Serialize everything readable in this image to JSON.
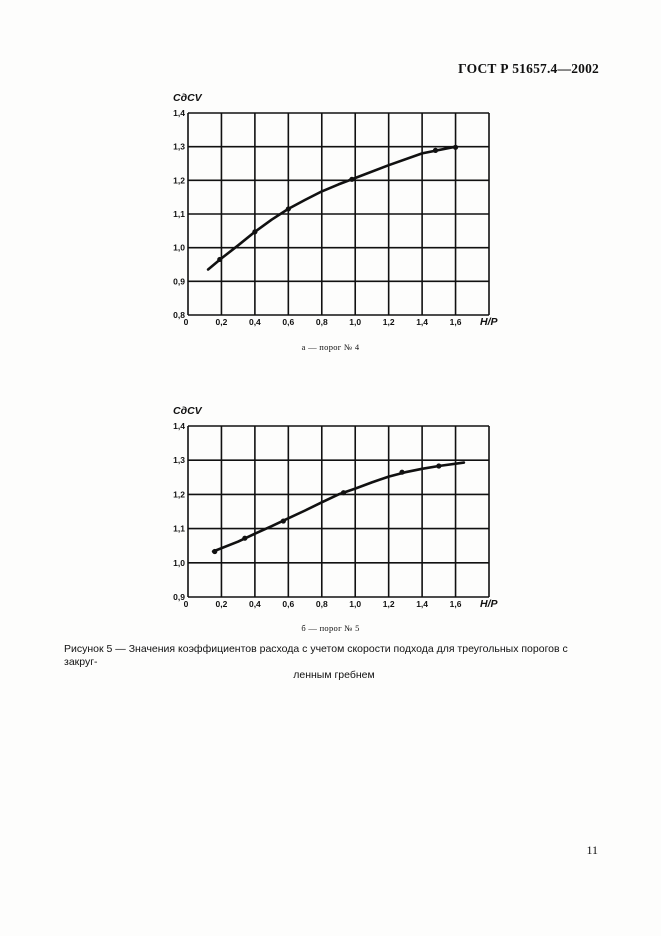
{
  "header": {
    "doc_number": "ГОСТ Р 51657.4—2002"
  },
  "chart_data": [
    {
      "type": "line",
      "ylabel": "CдCV",
      "xlabel": "H/P",
      "xlim": [
        0,
        1.8
      ],
      "ylim": [
        0.8,
        1.4
      ],
      "x_ticks": [
        "0",
        "0,2",
        "0,4",
        "0,6",
        "0,8",
        "1,0",
        "1,2",
        "1,4",
        "1,6"
      ],
      "y_ticks": [
        "0,8",
        "0,9",
        "1,0",
        "1,1",
        "1,2",
        "1,3",
        "1,4"
      ],
      "grid": true,
      "caption": "а — порог № 4",
      "series": [
        {
          "curve": [
            [
              0.12,
              0.935
            ],
            [
              0.2,
              0.968
            ],
            [
              0.3,
              1.007
            ],
            [
              0.4,
              1.047
            ],
            [
              0.5,
              1.083
            ],
            [
              0.6,
              1.115
            ],
            [
              0.7,
              1.142
            ],
            [
              0.8,
              1.167
            ],
            [
              0.9,
              1.188
            ],
            [
              1.0,
              1.207
            ],
            [
              1.2,
              1.245
            ],
            [
              1.4,
              1.28
            ],
            [
              1.6,
              1.3
            ]
          ],
          "points": [
            [
              0.19,
              0.965
            ],
            [
              0.4,
              1.047
            ],
            [
              0.6,
              1.115
            ],
            [
              0.98,
              1.203
            ],
            [
              1.48,
              1.289
            ],
            [
              1.6,
              1.298
            ]
          ]
        }
      ]
    },
    {
      "type": "line",
      "ylabel": "CдCV",
      "xlabel": "H/P",
      "xlim": [
        0,
        1.8
      ],
      "ylim": [
        0.9,
        1.4
      ],
      "x_ticks": [
        "0",
        "0,2",
        "0,4",
        "0,6",
        "0,8",
        "1,0",
        "1,2",
        "1,4",
        "1,6"
      ],
      "y_ticks": [
        "0,9",
        "1,0",
        "1,1",
        "1,2",
        "1,3",
        "1,4"
      ],
      "grid": true,
      "caption": "б — порог № 5",
      "series": [
        {
          "curve": [
            [
              0.15,
              1.033
            ],
            [
              0.3,
              1.062
            ],
            [
              0.4,
              1.085
            ],
            [
              0.5,
              1.107
            ],
            [
              0.6,
              1.13
            ],
            [
              0.7,
              1.153
            ],
            [
              0.8,
              1.177
            ],
            [
              0.9,
              1.2
            ],
            [
              1.0,
              1.217
            ],
            [
              1.1,
              1.235
            ],
            [
              1.2,
              1.252
            ],
            [
              1.3,
              1.265
            ],
            [
              1.4,
              1.275
            ],
            [
              1.5,
              1.283
            ],
            [
              1.65,
              1.293
            ]
          ],
          "points": [
            [
              0.16,
              1.033
            ],
            [
              0.34,
              1.072
            ],
            [
              0.57,
              1.122
            ],
            [
              0.93,
              1.205
            ],
            [
              1.28,
              1.265
            ],
            [
              1.5,
              1.283
            ]
          ]
        }
      ]
    }
  ],
  "figure": {
    "caption_line1": "Рисунок 5 — Значения коэффициентов расхода с учетом скорости подхода для треугольных порогов с закруг-",
    "caption_line2": "ленным гребнем"
  },
  "page_number": "11"
}
